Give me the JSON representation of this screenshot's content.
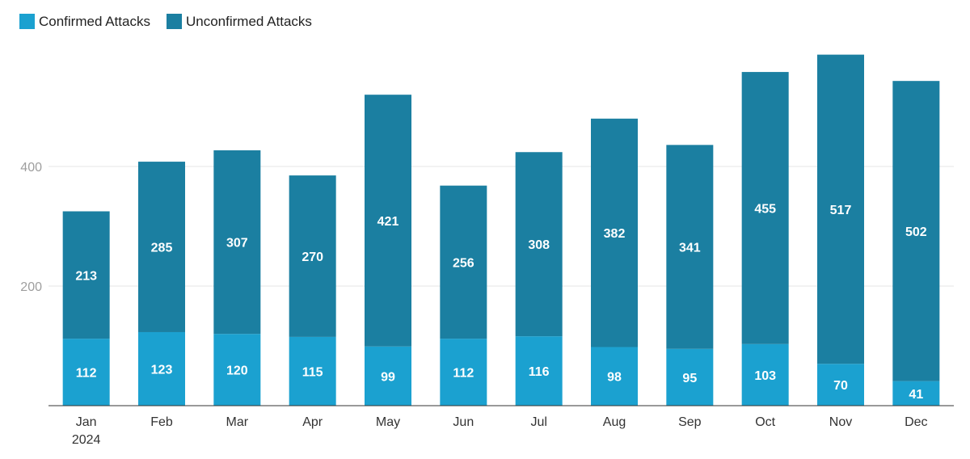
{
  "colors": {
    "confirmed": "#1ba1d0",
    "unconfirmed": "#1b7fa1",
    "grid": "#e6e6e6",
    "axis": "#333333"
  },
  "chart_data": {
    "type": "bar",
    "stacked": true,
    "categories": [
      "Jan",
      "Feb",
      "Mar",
      "Apr",
      "May",
      "Jun",
      "Jul",
      "Aug",
      "Sep",
      "Oct",
      "Nov",
      "Dec"
    ],
    "category_sublabels": [
      "2024",
      "",
      "",
      "",
      "",
      "",
      "",
      "",
      "",
      "",
      "",
      ""
    ],
    "series": [
      {
        "name": "Confirmed Attacks",
        "values": [
          112,
          123,
          120,
          115,
          99,
          112,
          116,
          98,
          95,
          103,
          70,
          41
        ]
      },
      {
        "name": "Unconfirmed Attacks",
        "values": [
          213,
          285,
          307,
          270,
          421,
          256,
          308,
          382,
          341,
          455,
          517,
          502
        ]
      }
    ],
    "yticks": [
      200,
      400
    ],
    "ylim": [
      0,
      600
    ],
    "grid": true,
    "legend": "top-left",
    "title": "",
    "xlabel": "",
    "ylabel": ""
  }
}
